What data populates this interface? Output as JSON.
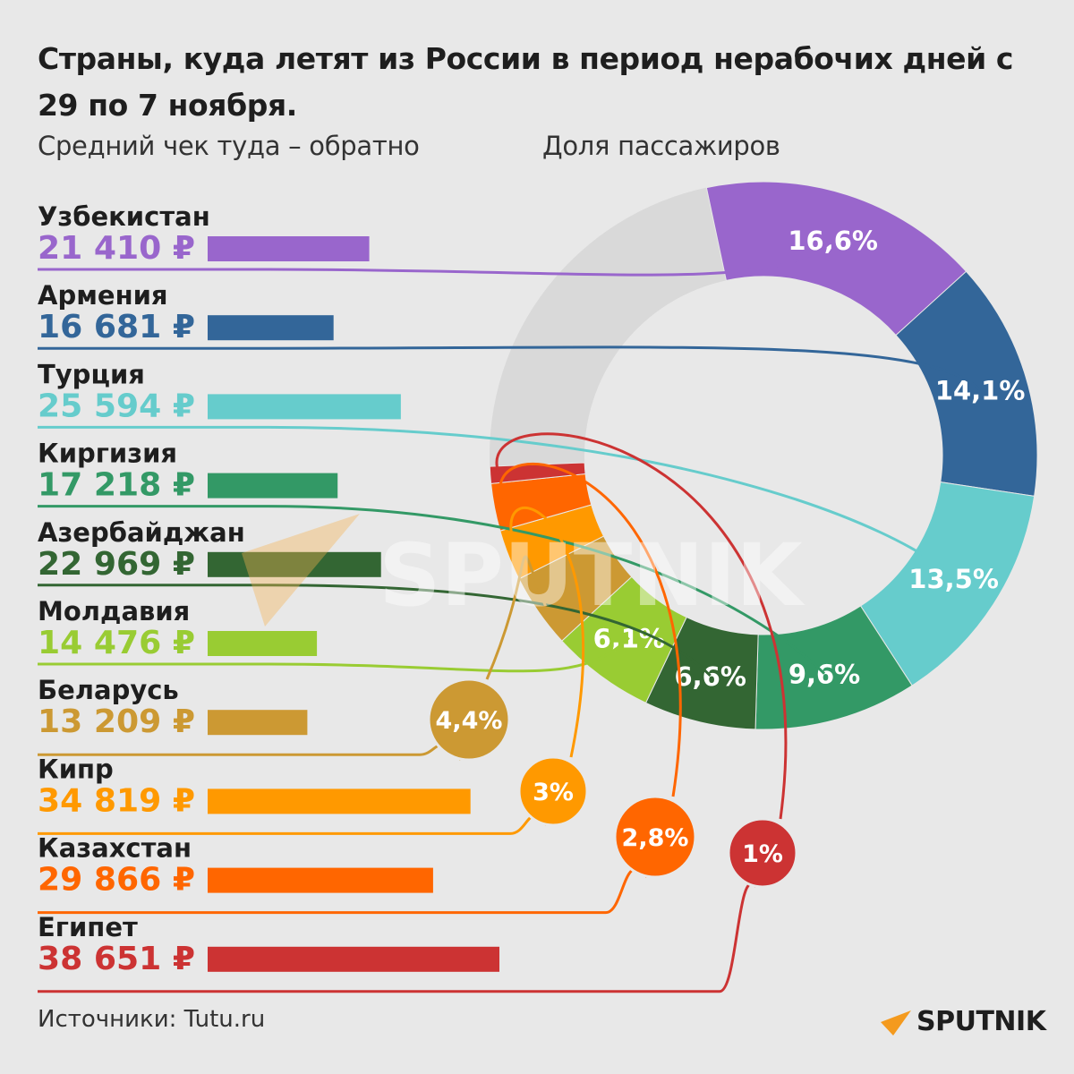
{
  "header": {
    "title": "Страны, куда летят из России в период нерабочих дней с 29 по 7 ноября.",
    "subtitle_left": "Средний чек туда – обратно",
    "subtitle_right": "Доля пассажиров"
  },
  "footer": {
    "source": "Источники: Tutu.ru",
    "logo": "SPUTNIK"
  },
  "watermark": "SPUTNIK",
  "chart_data": {
    "type": "bar",
    "categories": [
      "Узбекистан",
      "Армения",
      "Турция",
      "Киргизия",
      "Азербайджан",
      "Молдавия",
      "Беларусь",
      "Кипр",
      "Казахстан",
      "Египет"
    ],
    "price_labels": [
      "21 410 ₽",
      "16 681 ₽",
      "25 594 ₽",
      "17 218 ₽",
      "22 969 ₽",
      "14 476 ₽",
      "13 209 ₽",
      "34 819 ₽",
      "29 866 ₽",
      "38 651 ₽"
    ],
    "values": [
      21410,
      16681,
      25594,
      17218,
      22969,
      14476,
      13209,
      34819,
      29866,
      38651
    ],
    "share_labels": [
      "16,6%",
      "14,1%",
      "13,5%",
      "9,6%",
      "6,6%",
      "6,1%",
      "4,4%",
      "3%",
      "2,8%",
      "1%"
    ],
    "shares": [
      16.6,
      14.1,
      13.5,
      9.6,
      6.6,
      6.1,
      4.4,
      3.0,
      2.8,
      1.0
    ],
    "series": [
      {
        "name": "Средний чек туда – обратно",
        "values": [
          21410,
          16681,
          25594,
          17218,
          22969,
          14476,
          13209,
          34819,
          29866,
          38651
        ]
      },
      {
        "name": "Доля пассажиров",
        "values": [
          16.6,
          14.1,
          13.5,
          9.6,
          6.6,
          6.1,
          4.4,
          3.0,
          2.8,
          1.0
        ]
      }
    ],
    "colors": [
      "#9966cc",
      "#336699",
      "#66cccc",
      "#339966",
      "#336633",
      "#99cc33",
      "#cc9933",
      "#ff9900",
      "#ff6600",
      "#cc3333"
    ],
    "other_color": "#d9d9d9",
    "label_placement": [
      "in",
      "in",
      "in",
      "in",
      "in",
      "in",
      "bubble",
      "bubble",
      "bubble",
      "bubble"
    ],
    "grid": false,
    "legend": "none"
  }
}
